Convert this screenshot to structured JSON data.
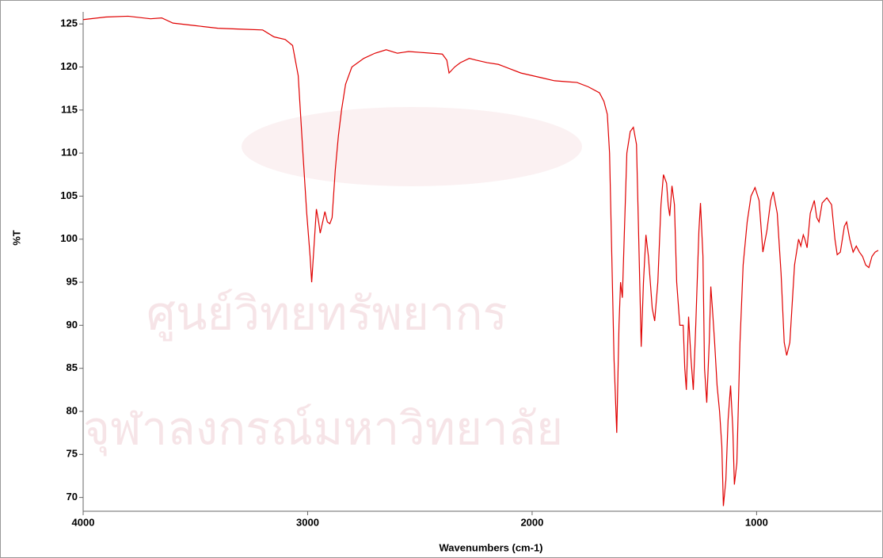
{
  "chart_data": {
    "type": "line",
    "xlabel": "Wavenumbers (cm-1)",
    "ylabel": "%T",
    "watermark": [
      "ศูนย์วิทยทรัพยากร",
      "จุฬาลงกรณ์มหาวิทยาลัย"
    ],
    "xlim": [
      4000,
      444
    ],
    "ylim": [
      68.4,
      126.4
    ],
    "xticks": [
      4000,
      3000,
      2000,
      1000
    ],
    "yticks": [
      70,
      75,
      80,
      85,
      90,
      95,
      100,
      105,
      110,
      115,
      120,
      125
    ],
    "series": [
      {
        "color": "#e00000",
        "x": [
          4000,
          3900,
          3800,
          3700,
          3650,
          3600,
          3500,
          3400,
          3300,
          3200,
          3150,
          3100,
          3067,
          3042,
          3021,
          3004,
          2989,
          2982,
          2972,
          2961,
          2951,
          2944,
          2933,
          2923,
          2912,
          2901,
          2891,
          2877,
          2863,
          2849,
          2831,
          2803,
          2750,
          2700,
          2650,
          2600,
          2550,
          2500,
          2450,
          2400,
          2380,
          2370,
          2345,
          2320,
          2280,
          2250,
          2200,
          2150,
          2100,
          2050,
          2000,
          1950,
          1900,
          1850,
          1800,
          1750,
          1700,
          1680,
          1665,
          1655,
          1645,
          1635,
          1623,
          1613,
          1606,
          1598,
          1590,
          1578,
          1563,
          1549,
          1535,
          1525,
          1514,
          1504,
          1493,
          1482,
          1465,
          1454,
          1440,
          1426,
          1415,
          1401,
          1394,
          1387,
          1377,
          1366,
          1356,
          1342,
          1327,
          1320,
          1313,
          1303,
          1292,
          1282,
          1271,
          1257,
          1250,
          1239,
          1232,
          1222,
          1211,
          1204,
          1197,
          1187,
          1176,
          1165,
          1155,
          1148,
          1137,
          1127,
          1116,
          1106,
          1099,
          1088,
          1074,
          1060,
          1042,
          1025,
          1007,
          989,
          972,
          954,
          937,
          926,
          908,
          891,
          877,
          866,
          852,
          831,
          813,
          803,
          792,
          785,
          775,
          761,
          743,
          732,
          722,
          708,
          687,
          666,
          651,
          641,
          627,
          609,
          599,
          585,
          570,
          556,
          542,
          528,
          514,
          500,
          486,
          472,
          458
        ],
        "values": [
          125.5,
          125.8,
          125.9,
          125.6,
          125.7,
          125.1,
          124.8,
          124.5,
          124.4,
          124.3,
          123.5,
          123.2,
          122.5,
          119,
          110,
          103,
          98,
          95,
          99,
          103.5,
          102,
          100.7,
          102,
          103.2,
          102,
          101.8,
          102.5,
          108,
          112,
          115,
          118,
          120,
          121,
          121.6,
          122,
          121.6,
          121.8,
          121.7,
          121.6,
          121.5,
          120.8,
          119.3,
          120,
          120.5,
          121,
          120.8,
          120.5,
          120.3,
          119.8,
          119.3,
          119,
          118.7,
          118.4,
          118.3,
          118.2,
          117.7,
          117,
          116,
          114.5,
          110,
          98,
          86,
          77.5,
          90,
          95,
          93.2,
          100,
          110,
          112.5,
          113,
          111,
          100,
          87.5,
          95,
          100.5,
          98,
          92,
          90.5,
          95,
          104,
          107.5,
          106.5,
          104,
          102.7,
          106.2,
          104,
          95,
          90,
          90,
          85,
          82.5,
          91,
          86,
          82.5,
          90,
          101,
          104.2,
          98,
          85,
          81,
          88,
          94.5,
          92,
          88,
          83,
          80,
          76,
          69,
          72,
          79,
          83,
          78,
          71.5,
          74,
          88,
          97,
          102,
          105,
          106,
          104.5,
          98.5,
          101,
          104.5,
          105.5,
          103,
          96,
          88,
          86.5,
          88,
          97,
          100,
          99.2,
          100.5,
          100,
          99,
          103,
          104.5,
          102.5,
          102,
          104.2,
          104.8,
          104,
          100,
          98.2,
          98.5,
          101.5,
          102,
          100,
          98.5,
          99.2,
          98.5,
          98,
          97,
          96.7,
          98,
          98.5,
          98.7
        ]
      }
    ]
  }
}
